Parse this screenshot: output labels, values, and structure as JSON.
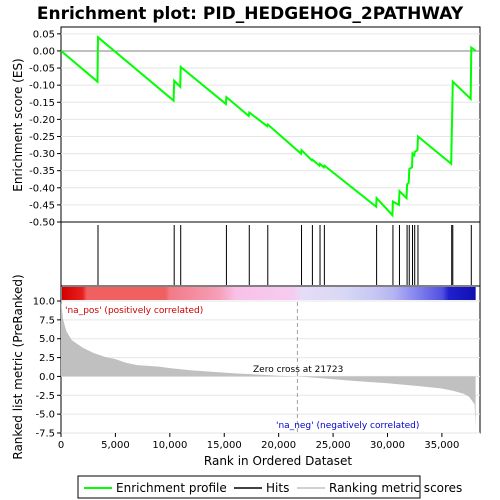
{
  "chart_data": {
    "type": "line",
    "title": "Enrichment plot: PID_HEDGEHOG_2PATHWAY",
    "xlabel": "Rank in Ordered Dataset",
    "ylabel_top": "Enrichment score (ES)",
    "ylabel_bottom": "Ranked list metric (PreRanked)",
    "x_ticks": [
      0,
      5000,
      10000,
      15000,
      20000,
      25000,
      30000,
      35000
    ],
    "x_tick_labels": [
      "0",
      "5,000",
      "10,000",
      "15,000",
      "20,000",
      "25,000",
      "30,000",
      "35,000"
    ],
    "xlim": [
      0,
      38500
    ],
    "es_ylim": [
      -0.5,
      0.07
    ],
    "es_ticks": [
      0.05,
      0.0,
      -0.05,
      -0.1,
      -0.15,
      -0.2,
      -0.25,
      -0.3,
      -0.35,
      -0.4,
      -0.45,
      -0.5
    ],
    "es_tick_labels": [
      "0.05",
      "0.00",
      "-0.05",
      "-0.10",
      "-0.15",
      "-0.20",
      "-0.25",
      "-0.30",
      "-0.35",
      "-0.40",
      "-0.45",
      "-0.50"
    ],
    "metric_ylim": [
      -7.5,
      10.0
    ],
    "metric_ticks": [
      10.0,
      7.5,
      5.0,
      2.5,
      0.0,
      -2.5,
      -5.0,
      -7.5
    ],
    "metric_tick_labels": [
      "10.0",
      "7.5",
      "5.0",
      "2.5",
      "0.0",
      "-2.5",
      "-5.0",
      "-7.5"
    ],
    "hits": [
      3400,
      10400,
      11000,
      15200,
      17300,
      19000,
      22100,
      23100,
      23800,
      24200,
      29000,
      30500,
      31100,
      31800,
      32000,
      32300,
      32500,
      32800,
      35900,
      36000,
      37700
    ],
    "es_curve": {
      "x": [
        0,
        3350,
        3400,
        10350,
        10400,
        10950,
        11000,
        15150,
        15200,
        17250,
        17300,
        18950,
        19000,
        22050,
        22100,
        23050,
        23100,
        23750,
        23800,
        24150,
        24200,
        28950,
        29000,
        30450,
        30500,
        31050,
        31100,
        31750,
        31800,
        31950,
        32000,
        32250,
        32300,
        32450,
        32500,
        32750,
        32800,
        35850,
        35900,
        35950,
        36000,
        37650,
        37700,
        38100
      ],
      "y": [
        0.0,
        -0.09,
        0.04,
        -0.145,
        -0.087,
        -0.105,
        -0.047,
        -0.155,
        -0.135,
        -0.19,
        -0.18,
        -0.22,
        -0.215,
        -0.3,
        -0.29,
        -0.32,
        -0.318,
        -0.335,
        -0.33,
        -0.34,
        -0.335,
        -0.455,
        -0.43,
        -0.48,
        -0.44,
        -0.45,
        -0.41,
        -0.43,
        -0.39,
        -0.385,
        -0.345,
        -0.34,
        -0.3,
        -0.305,
        -0.295,
        -0.29,
        -0.25,
        -0.33,
        -0.25,
        -0.18,
        -0.09,
        -0.14,
        0.01,
        0.0
      ]
    },
    "metric_curve": {
      "x": [
        0,
        200,
        500,
        1000,
        2000,
        3000,
        4000,
        5000,
        6000,
        7000,
        8000,
        9000,
        10000,
        12000,
        14000,
        16000,
        18000,
        20000,
        21723,
        24000,
        27000,
        30000,
        33000,
        35000,
        36000,
        37000,
        37500,
        38000,
        38100
      ],
      "y": [
        10.0,
        7.5,
        6.0,
        4.8,
        3.8,
        3.1,
        2.6,
        2.3,
        1.8,
        1.5,
        1.4,
        1.3,
        1.1,
        0.8,
        0.6,
        0.4,
        0.25,
        0.1,
        0.0,
        -0.25,
        -0.6,
        -0.9,
        -1.3,
        -1.6,
        -1.9,
        -2.3,
        -2.7,
        -3.7,
        -6.8
      ]
    },
    "zero_cross_label": "Zero cross at 21723",
    "zero_cross": 21723,
    "pos_label": "'na_pos' (positively correlated)",
    "neg_label": "'na_neg' (negatively correlated)",
    "legend": [
      {
        "name": "Enrichment profile",
        "color": "#00ff00"
      },
      {
        "name": "Hits",
        "color": "#000000"
      },
      {
        "name": "Ranking metric scores",
        "color": "#c0c0c0"
      }
    ],
    "colors": {
      "es_line": "#00ff00",
      "hits": "#000000",
      "metric_fill": "#c0c0c0",
      "pos_text": "#cc0000",
      "neg_text": "#0000cc"
    }
  }
}
